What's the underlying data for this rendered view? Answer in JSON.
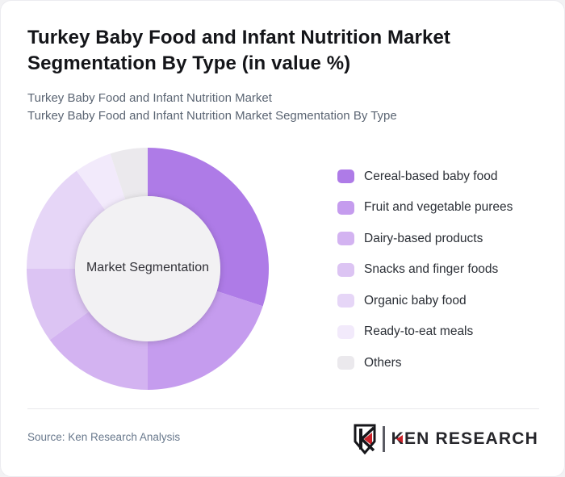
{
  "card": {
    "title": "Turkey Baby Food and Infant Nutrition Market Segmentation By Type (in value %)",
    "subtitle_line1": "Turkey Baby Food and Infant Nutrition Market",
    "subtitle_line2": "Turkey Baby Food and Infant Nutrition Market Segmentation By Type"
  },
  "chart_data": {
    "type": "pie",
    "variant": "donut",
    "title": "Turkey Baby Food and Infant Nutrition Market Segmentation By Type (in value %)",
    "center_label": "Market Segmentation",
    "unit": "%",
    "direction": "clockwise",
    "start_angle_deg": 0,
    "inner_radius_ratio": 0.6,
    "legend_position": "right",
    "categories": [
      "Cereal-based baby food",
      "Fruit and vegetable purees",
      "Dairy-based products",
      "Snacks and finger foods",
      "Organic baby food",
      "Ready-to-eat meals",
      "Others"
    ],
    "values": [
      30,
      20,
      15,
      10,
      15,
      5,
      5
    ],
    "colors": [
      "#ae7be7",
      "#c59cee",
      "#d3b3f1",
      "#dcc4f3",
      "#e6d6f7",
      "#f2eafb",
      "#ebe9ed"
    ],
    "hole_color": "#f2f1f3"
  },
  "footer": {
    "source_text": "Source: Ken Research Analysis",
    "brand": "KEN RESEARCH",
    "brand_monogram": "K",
    "brand_accent_color": "#cb2229"
  }
}
